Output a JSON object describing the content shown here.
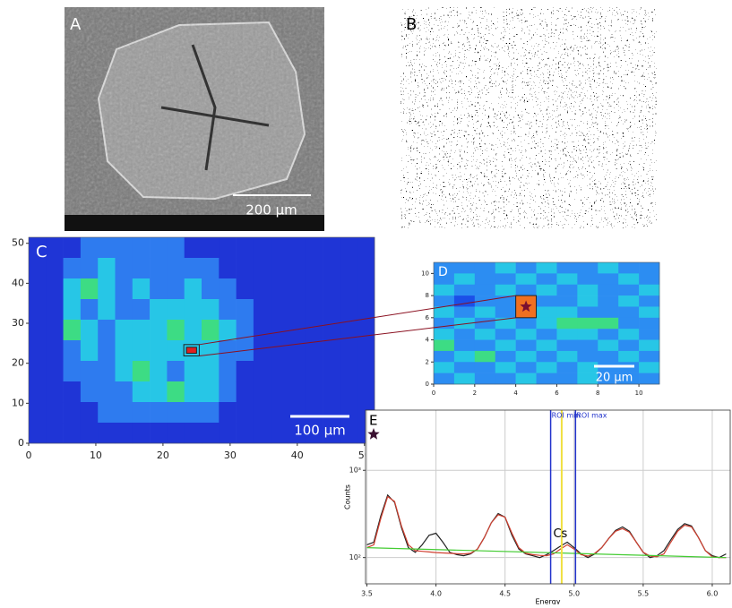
{
  "panels": {
    "A": {
      "label": "A",
      "scale_bar": "200 µm"
    },
    "B": {
      "label": "B"
    }
  },
  "chart_data": [
    {
      "type": "heatmap",
      "label": "C",
      "scale_bar": "100 µm",
      "xlim": [
        0,
        51.5
      ],
      "ylim": [
        0,
        51.5
      ],
      "xticks": [
        0,
        10,
        20,
        30,
        40,
        50
      ],
      "yticks": [
        0,
        10,
        20,
        30,
        40,
        50
      ],
      "colors": [
        "#1f35d6",
        "#2e7bef",
        "#27c6e6",
        "#3ddc84"
      ],
      "grid": [
        [
          0,
          0,
          0,
          1,
          1,
          1,
          1,
          1,
          1,
          0,
          0,
          0,
          0,
          0,
          0,
          0,
          0,
          0,
          0,
          0
        ],
        [
          0,
          0,
          1,
          1,
          2,
          1,
          1,
          1,
          1,
          1,
          1,
          0,
          0,
          0,
          0,
          0,
          0,
          0,
          0,
          0
        ],
        [
          0,
          0,
          2,
          3,
          2,
          1,
          2,
          1,
          1,
          2,
          1,
          1,
          0,
          0,
          0,
          0,
          0,
          0,
          0,
          0
        ],
        [
          0,
          0,
          2,
          1,
          2,
          1,
          1,
          2,
          2,
          2,
          2,
          1,
          1,
          0,
          0,
          0,
          0,
          0,
          0,
          0
        ],
        [
          0,
          0,
          3,
          2,
          1,
          2,
          2,
          2,
          3,
          2,
          3,
          2,
          1,
          0,
          0,
          0,
          0,
          0,
          0,
          0
        ],
        [
          0,
          0,
          1,
          2,
          1,
          2,
          2,
          2,
          2,
          2,
          2,
          1,
          1,
          0,
          0,
          0,
          0,
          0,
          0,
          0
        ],
        [
          0,
          0,
          1,
          1,
          1,
          2,
          3,
          2,
          1,
          2,
          2,
          1,
          0,
          0,
          0,
          0,
          0,
          0,
          0,
          0
        ],
        [
          0,
          0,
          0,
          1,
          1,
          1,
          2,
          2,
          3,
          2,
          2,
          1,
          0,
          0,
          0,
          0,
          0,
          0,
          0,
          0
        ],
        [
          0,
          0,
          0,
          0,
          1,
          1,
          1,
          1,
          1,
          1,
          1,
          0,
          0,
          0,
          0,
          0,
          0,
          0,
          0,
          0
        ],
        [
          0,
          0,
          0,
          0,
          0,
          0,
          0,
          0,
          0,
          0,
          0,
          0,
          0,
          0,
          0,
          0,
          0,
          0,
          0,
          0
        ]
      ],
      "highlight": {
        "x": [
          23.5,
          25
        ],
        "y": [
          22.5,
          24
        ],
        "color": "#e02020"
      }
    },
    {
      "type": "heatmap",
      "label": "D",
      "scale_bar": "20 µm",
      "xlim": [
        0,
        11
      ],
      "ylim": [
        0,
        11
      ],
      "xticks": [
        0,
        2,
        4,
        6,
        8,
        10
      ],
      "yticks": [
        0,
        2,
        4,
        6,
        8,
        10
      ],
      "colors": [
        "#1b4fe8",
        "#2c8df2",
        "#27c6e6",
        "#3ddc84"
      ],
      "grid": [
        [
          1,
          1,
          1,
          2,
          1,
          2,
          1,
          1,
          2,
          1,
          1
        ],
        [
          1,
          2,
          1,
          1,
          2,
          1,
          2,
          1,
          1,
          2,
          1
        ],
        [
          2,
          1,
          1,
          2,
          1,
          2,
          1,
          2,
          1,
          1,
          2
        ],
        [
          1,
          0,
          1,
          1,
          2,
          1,
          1,
          2,
          1,
          2,
          1
        ],
        [
          2,
          1,
          2,
          1,
          2,
          2,
          2,
          1,
          1,
          1,
          2
        ],
        [
          1,
          2,
          1,
          2,
          1,
          2,
          3,
          3,
          3,
          1,
          1
        ],
        [
          2,
          1,
          2,
          1,
          2,
          1,
          2,
          2,
          1,
          2,
          1
        ],
        [
          3,
          1,
          1,
          2,
          1,
          2,
          1,
          1,
          2,
          1,
          2
        ],
        [
          1,
          2,
          3,
          1,
          2,
          1,
          2,
          1,
          1,
          2,
          1
        ],
        [
          2,
          1,
          1,
          2,
          1,
          2,
          1,
          2,
          1,
          1,
          2
        ],
        [
          1,
          2,
          1,
          1,
          2,
          1,
          1,
          2,
          1,
          1,
          1
        ]
      ],
      "highlight": {
        "x": [
          4,
          5
        ],
        "y": [
          6,
          8
        ],
        "color": "#f07020"
      }
    },
    {
      "type": "line",
      "label": "E",
      "log_y": true,
      "grid": true,
      "xlabel": "Energy",
      "ylabel": "Counts",
      "xlim": [
        3.49,
        6.13
      ],
      "ylim": [
        50,
        4900
      ],
      "xticks": [
        3.5,
        {
          "value": 4,
          "label": "4.0"
        },
        4.5,
        {
          "value": 5,
          "label": "5.0"
        },
        5.5,
        {
          "value": 6,
          "label": "6.0"
        }
      ],
      "yticks": [
        {
          "value": 100,
          "label": "10²"
        },
        {
          "value": 1000,
          "label": "10³"
        }
      ],
      "x": [
        3.5,
        3.55,
        3.6,
        3.65,
        3.7,
        3.75,
        3.8,
        3.85,
        3.9,
        3.95,
        4.0,
        4.05,
        4.1,
        4.15,
        4.2,
        4.25,
        4.3,
        4.35,
        4.4,
        4.45,
        4.5,
        4.55,
        4.6,
        4.65,
        4.7,
        4.75,
        4.8,
        4.85,
        4.9,
        4.95,
        5.0,
        5.05,
        5.1,
        5.15,
        5.2,
        5.25,
        5.3,
        5.35,
        5.4,
        5.45,
        5.5,
        5.55,
        5.6,
        5.65,
        5.7,
        5.75,
        5.8,
        5.85,
        5.9,
        5.95,
        6.0,
        6.05,
        6.1
      ],
      "series": [
        {
          "color": "#222222",
          "values": [
            140,
            150,
            300,
            520,
            430,
            220,
            130,
            115,
            140,
            180,
            190,
            150,
            115,
            108,
            105,
            110,
            125,
            170,
            250,
            320,
            290,
            180,
            125,
            110,
            105,
            100,
            108,
            120,
            135,
            150,
            130,
            110,
            100,
            110,
            130,
            165,
            205,
            225,
            200,
            150,
            115,
            100,
            105,
            120,
            160,
            210,
            245,
            230,
            170,
            120,
            105,
            100,
            110
          ]
        },
        {
          "color": "#d04030",
          "values": [
            130,
            140,
            280,
            500,
            440,
            230,
            140,
            120,
            118,
            116,
            114,
            113,
            112,
            111,
            110,
            112,
            125,
            170,
            250,
            310,
            290,
            190,
            130,
            112,
            108,
            106,
            105,
            110,
            125,
            140,
            125,
            108,
            104,
            112,
            130,
            165,
            200,
            215,
            195,
            150,
            115,
            104,
            102,
            110,
            150,
            200,
            235,
            225,
            170,
            120,
            102,
            100,
            100
          ]
        },
        {
          "color": "#44cc33",
          "x": [
            3.5,
            6.1
          ],
          "values": [
            130,
            100
          ]
        }
      ],
      "rois": [
        {
          "text": "ROI min",
          "x": 4.83,
          "color": "#2233cc"
        },
        {
          "text": "ROI max",
          "x": 5.01,
          "color": "#2233cc"
        }
      ],
      "marker": {
        "x": 4.91,
        "color": "#f0e040"
      },
      "annotation": {
        "text": "Cs",
        "x": 4.9,
        "y": 185
      }
    }
  ]
}
